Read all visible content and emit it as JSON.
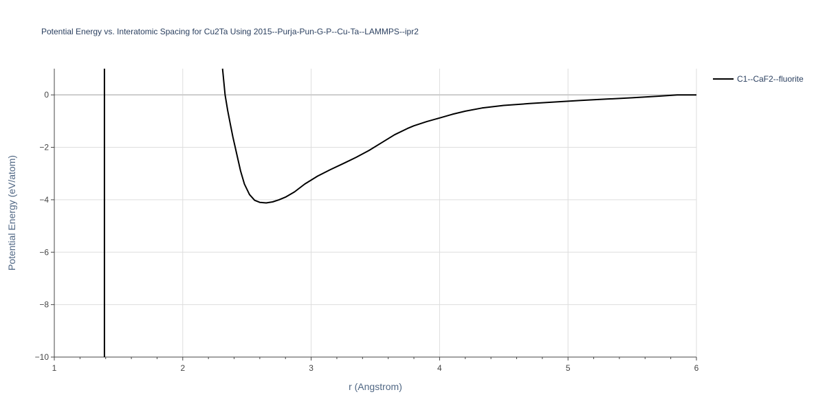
{
  "chart_data": {
    "type": "line",
    "title": "Potential Energy vs. Interatomic Spacing for Cu2Ta Using 2015--Purja-Pun-G-P--Cu-Ta--LAMMPS--ipr2",
    "xlabel": "r (Angstrom)",
    "ylabel": "Potential Energy (eV/atom)",
    "xlim": [
      1,
      6
    ],
    "ylim": [
      -10,
      1
    ],
    "x_ticks": [
      1,
      2,
      3,
      4,
      5,
      6
    ],
    "x_tick_labels": [
      "1",
      "2",
      "3",
      "4",
      "5",
      "6"
    ],
    "y_ticks": [
      0,
      -2,
      -4,
      -6,
      -8,
      -10
    ],
    "y_tick_labels": [
      "0",
      "−2",
      "−4",
      "−6",
      "−8",
      "−10"
    ],
    "grid": true,
    "legend_position": "top-right-outside",
    "series": [
      {
        "name": "C1--CaF2--fluorite",
        "color": "#000000",
        "x": [
          2.31,
          2.33,
          2.35,
          2.37,
          2.39,
          2.42,
          2.45,
          2.48,
          2.52,
          2.56,
          2.6,
          2.65,
          2.7,
          2.75,
          2.8,
          2.87,
          2.95,
          3.05,
          3.15,
          3.25,
          3.35,
          3.45,
          3.55,
          3.65,
          3.75,
          3.8,
          3.9,
          4.0,
          4.1,
          4.2,
          4.33,
          4.5,
          4.7,
          4.9,
          5.1,
          5.3,
          5.5,
          5.7,
          5.85,
          6.0
        ],
        "y": [
          1.0,
          0.0,
          -0.6,
          -1.1,
          -1.6,
          -2.25,
          -2.9,
          -3.4,
          -3.8,
          -4.02,
          -4.1,
          -4.12,
          -4.08,
          -4.0,
          -3.9,
          -3.7,
          -3.4,
          -3.1,
          -2.85,
          -2.62,
          -2.38,
          -2.12,
          -1.82,
          -1.52,
          -1.28,
          -1.18,
          -1.02,
          -0.88,
          -0.74,
          -0.62,
          -0.5,
          -0.4,
          -0.33,
          -0.27,
          -0.21,
          -0.16,
          -0.11,
          -0.05,
          0.0,
          0.0
        ]
      },
      {
        "name": "",
        "color": "#000000",
        "x": [
          1.39,
          1.39
        ],
        "y": [
          1.0,
          -10.0
        ]
      }
    ]
  }
}
